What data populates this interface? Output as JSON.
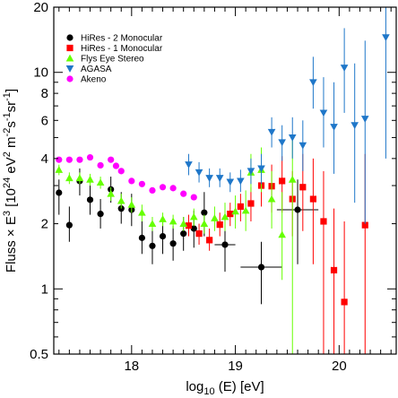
{
  "chart_data": {
    "type": "scatter",
    "title": "",
    "xlabel": {
      "prefix": "log",
      "sub": "10",
      "suffix": " (E) [eV]"
    },
    "ylabel": {
      "parts": [
        "Fluss × E",
        "3",
        " [10",
        "24",
        " eV",
        "2",
        " m",
        "-2",
        "s",
        "-1",
        "sr",
        "-1",
        "]"
      ]
    },
    "xlim": [
      17.25,
      20.55
    ],
    "ylim": [
      0.5,
      20
    ],
    "yscale": "log",
    "xticks": [
      {
        "v": 18,
        "label": "18"
      },
      {
        "v": 19,
        "label": "19"
      },
      {
        "v": 20,
        "label": "20"
      }
    ],
    "yticks": [
      {
        "v": 0.5,
        "label": "0.5"
      },
      {
        "v": 1,
        "label": "1"
      },
      {
        "v": 2,
        "label": "2"
      },
      {
        "v": 4,
        "label": "4"
      },
      {
        "v": 6,
        "label": "6"
      },
      {
        "v": 8,
        "label": "8"
      },
      {
        "v": 10,
        "label": "10"
      },
      {
        "v": 20,
        "label": "20"
      }
    ],
    "legend_position": "top-left",
    "series": [
      {
        "name": "HiRes - 2 Monocular",
        "marker": "circle",
        "color": "#000000",
        "points": [
          {
            "x": 17.3,
            "y": 2.78,
            "lo": 2.2,
            "hi": 3.2
          },
          {
            "x": 17.4,
            "y": 1.97,
            "lo": 1.65,
            "hi": 2.4
          },
          {
            "x": 17.5,
            "y": 3.15,
            "lo": 2.7,
            "hi": 3.6
          },
          {
            "x": 17.6,
            "y": 2.58,
            "lo": 2.2,
            "hi": 3.0
          },
          {
            "x": 17.7,
            "y": 2.22,
            "lo": 1.9,
            "hi": 2.6
          },
          {
            "x": 17.8,
            "y": 2.88,
            "lo": 2.5,
            "hi": 3.3
          },
          {
            "x": 17.9,
            "y": 2.35,
            "lo": 2.0,
            "hi": 2.8
          },
          {
            "x": 18.0,
            "y": 2.32,
            "lo": 1.95,
            "hi": 2.75
          },
          {
            "x": 18.1,
            "y": 1.72,
            "lo": 1.45,
            "hi": 2.05
          },
          {
            "x": 18.2,
            "y": 1.58,
            "lo": 1.3,
            "hi": 1.9
          },
          {
            "x": 18.3,
            "y": 1.75,
            "lo": 1.45,
            "hi": 2.1
          },
          {
            "x": 18.4,
            "y": 1.62,
            "lo": 1.35,
            "hi": 1.95
          },
          {
            "x": 18.5,
            "y": 1.8,
            "lo": 1.5,
            "hi": 2.15
          },
          {
            "x": 18.6,
            "y": 1.9,
            "lo": 1.55,
            "hi": 2.3
          },
          {
            "x": 18.7,
            "y": 2.25,
            "lo": 1.75,
            "hi": 2.8
          },
          {
            "x": 18.9,
            "y": 1.6,
            "lo": 1.2,
            "hi": 2.05,
            "xerr": 0.1
          },
          {
            "x": 19.25,
            "y": 1.26,
            "lo": 0.85,
            "hi": 1.65,
            "xerr": 0.2
          },
          {
            "x": 19.6,
            "y": 2.32,
            "lo": 1.3,
            "hi": 3.2,
            "xerr": 0.2
          }
        ]
      },
      {
        "name": "HiRes - 1 Monocular",
        "marker": "square",
        "color": "#ff0000",
        "points": [
          {
            "x": 18.55,
            "y": 1.96,
            "lo": 1.75,
            "hi": 2.2
          },
          {
            "x": 18.65,
            "y": 1.8,
            "lo": 1.6,
            "hi": 2.0
          },
          {
            "x": 18.75,
            "y": 1.68,
            "lo": 1.5,
            "hi": 1.9
          },
          {
            "x": 18.85,
            "y": 1.98,
            "lo": 1.75,
            "hi": 2.25
          },
          {
            "x": 18.95,
            "y": 2.22,
            "lo": 1.95,
            "hi": 2.5
          },
          {
            "x": 19.05,
            "y": 2.4,
            "lo": 2.05,
            "hi": 2.75
          },
          {
            "x": 19.15,
            "y": 2.48,
            "lo": 2.05,
            "hi": 2.95
          },
          {
            "x": 19.25,
            "y": 3.0,
            "lo": 2.4,
            "hi": 3.65
          },
          {
            "x": 19.35,
            "y": 2.98,
            "lo": 2.25,
            "hi": 3.75
          },
          {
            "x": 19.45,
            "y": 3.15,
            "lo": 2.25,
            "hi": 4.1
          },
          {
            "x": 19.55,
            "y": 2.6,
            "lo": 1.75,
            "hi": 3.5
          },
          {
            "x": 19.65,
            "y": 2.95,
            "lo": 1.85,
            "hi": 4.2
          },
          {
            "x": 19.75,
            "y": 2.6,
            "lo": 1.3,
            "hi": 4.0
          },
          {
            "x": 19.85,
            "y": 2.05,
            "lo": 0.5,
            "hi": 3.5
          },
          {
            "x": 19.95,
            "y": 1.22,
            "lo": 0.5,
            "hi": 2.35
          },
          {
            "x": 20.05,
            "y": 0.87,
            "lo": 0.5,
            "hi": 2.05
          },
          {
            "x": 20.25,
            "y": 1.97,
            "lo": 0.5,
            "hi": 4.2
          }
        ]
      },
      {
        "name": "Flys Eye Stereo",
        "marker": "triangle-up",
        "color": "#66ff00",
        "points": [
          {
            "x": 17.3,
            "y": 3.55,
            "lo": 3.35,
            "hi": 3.75
          },
          {
            "x": 17.4,
            "y": 3.25,
            "lo": 3.05,
            "hi": 3.45
          },
          {
            "x": 17.5,
            "y": 3.25,
            "lo": 3.05,
            "hi": 3.45
          },
          {
            "x": 17.6,
            "y": 3.2,
            "lo": 3.0,
            "hi": 3.4
          },
          {
            "x": 17.7,
            "y": 3.1,
            "lo": 2.9,
            "hi": 3.3
          },
          {
            "x": 17.8,
            "y": 2.75,
            "lo": 2.55,
            "hi": 2.95
          },
          {
            "x": 17.9,
            "y": 2.55,
            "lo": 2.35,
            "hi": 2.75
          },
          {
            "x": 18.0,
            "y": 2.45,
            "lo": 2.25,
            "hi": 2.65
          },
          {
            "x": 18.1,
            "y": 2.25,
            "lo": 2.05,
            "hi": 2.45
          },
          {
            "x": 18.2,
            "y": 2.0,
            "lo": 1.85,
            "hi": 2.15
          },
          {
            "x": 18.3,
            "y": 2.1,
            "lo": 1.95,
            "hi": 2.25
          },
          {
            "x": 18.4,
            "y": 2.05,
            "lo": 1.9,
            "hi": 2.2
          },
          {
            "x": 18.5,
            "y": 2.0,
            "lo": 1.85,
            "hi": 2.15
          },
          {
            "x": 18.6,
            "y": 2.15,
            "lo": 1.95,
            "hi": 2.35
          },
          {
            "x": 18.7,
            "y": 2.0,
            "lo": 1.8,
            "hi": 2.2
          },
          {
            "x": 18.8,
            "y": 2.12,
            "lo": 1.85,
            "hi": 2.4
          },
          {
            "x": 18.9,
            "y": 2.15,
            "lo": 1.85,
            "hi": 2.5
          },
          {
            "x": 19.0,
            "y": 2.28,
            "lo": 1.9,
            "hi": 2.7
          },
          {
            "x": 19.1,
            "y": 2.3,
            "lo": 1.85,
            "hi": 2.85
          },
          {
            "x": 19.15,
            "y": 3.45,
            "lo": 2.8,
            "hi": 4.2
          },
          {
            "x": 19.25,
            "y": 3.55,
            "lo": 2.8,
            "hi": 4.5
          },
          {
            "x": 19.35,
            "y": 2.6,
            "lo": 1.9,
            "hi": 3.5
          },
          {
            "x": 19.45,
            "y": 1.78,
            "lo": 1.1,
            "hi": 2.8
          },
          {
            "x": 19.55,
            "y": 3.2,
            "lo": 0.5,
            "hi": 5.0
          }
        ]
      },
      {
        "name": "AGASA",
        "marker": "triangle-down",
        "color": "#1f77c9",
        "points": [
          {
            "x": 18.55,
            "y": 3.75,
            "lo": 3.35,
            "hi": 4.2
          },
          {
            "x": 18.65,
            "y": 3.45,
            "lo": 3.1,
            "hi": 3.85
          },
          {
            "x": 18.75,
            "y": 3.25,
            "lo": 2.95,
            "hi": 3.6
          },
          {
            "x": 18.85,
            "y": 3.25,
            "lo": 2.95,
            "hi": 3.6
          },
          {
            "x": 18.95,
            "y": 3.12,
            "lo": 2.8,
            "hi": 3.45
          },
          {
            "x": 19.05,
            "y": 3.15,
            "lo": 2.8,
            "hi": 3.55
          },
          {
            "x": 19.15,
            "y": 3.5,
            "lo": 3.05,
            "hi": 4.0
          },
          {
            "x": 19.25,
            "y": 3.6,
            "lo": 3.05,
            "hi": 4.2
          },
          {
            "x": 19.35,
            "y": 5.3,
            "lo": 4.5,
            "hi": 6.2
          },
          {
            "x": 19.45,
            "y": 4.75,
            "lo": 3.9,
            "hi": 5.7
          },
          {
            "x": 19.55,
            "y": 5.0,
            "lo": 4.0,
            "hi": 6.2
          },
          {
            "x": 19.65,
            "y": 4.6,
            "lo": 3.5,
            "hi": 6.0
          },
          {
            "x": 19.75,
            "y": 9.0,
            "lo": 6.8,
            "hi": 11.8
          },
          {
            "x": 19.85,
            "y": 6.5,
            "lo": 4.5,
            "hi": 9.5
          },
          {
            "x": 19.95,
            "y": 5.6,
            "lo": 3.4,
            "hi": 9.0
          },
          {
            "x": 20.05,
            "y": 10.5,
            "lo": 6.5,
            "hi": 16.0
          },
          {
            "x": 20.15,
            "y": 5.7,
            "lo": 2.5,
            "hi": 11.0
          },
          {
            "x": 20.25,
            "y": 6.1,
            "lo": 2.0,
            "hi": 14.0
          },
          {
            "x": 20.45,
            "y": 14.5,
            "lo": 4.0,
            "hi": 20.0
          }
        ]
      },
      {
        "name": "Akeno",
        "marker": "circle",
        "color": "#ff00ff",
        "points": [
          {
            "x": 17.3,
            "y": 3.95
          },
          {
            "x": 17.4,
            "y": 3.95
          },
          {
            "x": 17.5,
            "y": 3.95
          },
          {
            "x": 17.6,
            "y": 4.05
          },
          {
            "x": 17.7,
            "y": 3.72
          },
          {
            "x": 17.8,
            "y": 3.95
          },
          {
            "x": 17.85,
            "y": 3.7
          },
          {
            "x": 17.9,
            "y": 3.5
          },
          {
            "x": 18.0,
            "y": 3.15
          },
          {
            "x": 18.1,
            "y": 3.05
          },
          {
            "x": 18.2,
            "y": 2.85
          },
          {
            "x": 18.3,
            "y": 2.95
          },
          {
            "x": 18.4,
            "y": 2.92
          },
          {
            "x": 18.5,
            "y": 2.75
          },
          {
            "x": 18.6,
            "y": 2.65
          }
        ]
      }
    ]
  }
}
